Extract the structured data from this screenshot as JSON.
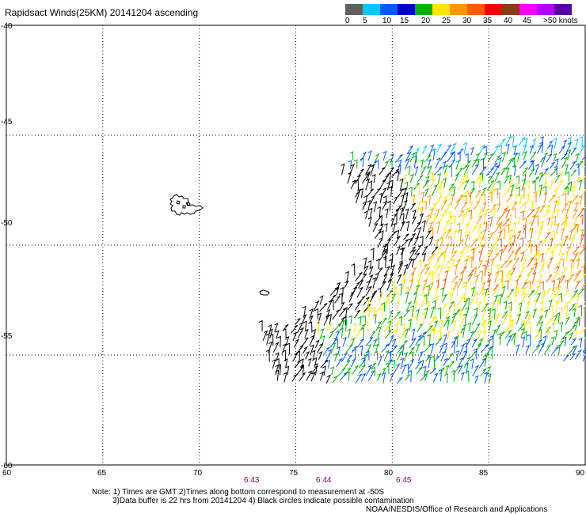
{
  "title": "Rapidsact Winds(25KM) 20141204 ascending",
  "legend": {
    "colors": [
      "#606060",
      "#00c8ff",
      "#005aff",
      "#0000c8",
      "#00b400",
      "#ffe600",
      "#ff9600",
      "#ff5a00",
      "#ff0000",
      "#8c3c14",
      "#ff00ff",
      "#b400ff",
      "#5a00a0"
    ],
    "labels": [
      "0",
      "5",
      "10",
      "15",
      "20",
      "25",
      "30",
      "35",
      "40",
      "45",
      ">50 knots"
    ]
  },
  "axes": {
    "lat_labels": [
      "-40",
      "-45",
      "-50",
      "-55",
      "-60"
    ],
    "lon_labels": [
      "60",
      "65",
      "70",
      "75",
      "80",
      "85",
      "90"
    ]
  },
  "time_labels": [
    "6:43",
    "6:44",
    "6:45"
  ],
  "notes": {
    "line1": "Note: 1) Times are GMT 2)Times along bottom correspond to measurement at -50S",
    "line2": "3)Data buffer is 22 hrs from 20141204 4) Black circles indicate possible contamination",
    "line3": "NOAA/NESDIS/Office of Research and Applications"
  },
  "map": {
    "lon_range": [
      60,
      90
    ],
    "lat_range": [
      -60,
      -40
    ],
    "islands": [
      "Kerguelen Islands",
      "Heard Island"
    ]
  },
  "chart_data": {
    "type": "wind barb map",
    "xlim": [
      60,
      90
    ],
    "ylim": [
      -60,
      -40
    ]
  }
}
